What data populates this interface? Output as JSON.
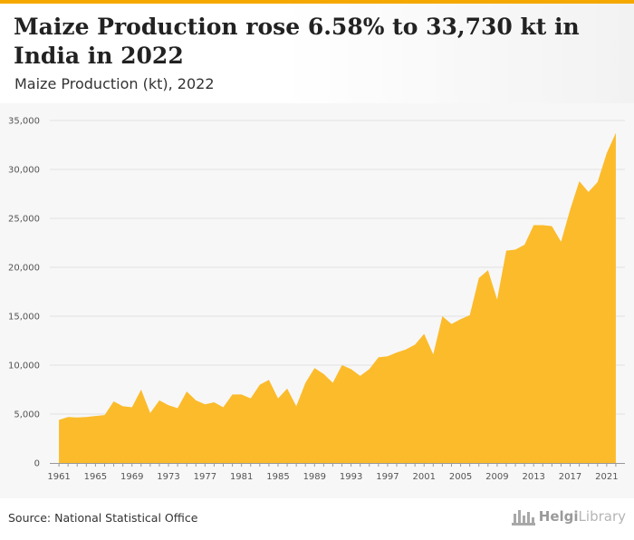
{
  "header": {
    "title": "Maize Production rose 6.58% to 33,730 kt in India in 2022",
    "subtitle": "Maize Production (kt), 2022"
  },
  "footer": {
    "source": "Source: National Statistical Office",
    "logo_bold": "Helgi",
    "logo_light": "Library"
  },
  "colors": {
    "accent_bar": "#f5a800",
    "area_fill": "#fbbb2b"
  },
  "chart_data": {
    "type": "area",
    "title": "",
    "xlabel": "",
    "ylabel": "",
    "ylim": [
      0,
      35000
    ],
    "yticks": [
      "0",
      "5,000",
      "10,000",
      "15,000",
      "20,000",
      "25,000",
      "30,000",
      "35,000"
    ],
    "xticks": [
      "1961",
      "1965",
      "1969",
      "1973",
      "1977",
      "1981",
      "1985",
      "1989",
      "1993",
      "1997",
      "2001",
      "2005",
      "2009",
      "2013",
      "2017",
      "2021"
    ],
    "grid": true,
    "legend": "none",
    "x": [
      1961,
      1962,
      1963,
      1964,
      1965,
      1966,
      1967,
      1968,
      1969,
      1970,
      1971,
      1972,
      1973,
      1974,
      1975,
      1976,
      1977,
      1978,
      1979,
      1980,
      1981,
      1982,
      1983,
      1984,
      1985,
      1986,
      1987,
      1988,
      1989,
      1990,
      1991,
      1992,
      1993,
      1994,
      1995,
      1996,
      1997,
      1998,
      1999,
      2000,
      2001,
      2002,
      2003,
      2004,
      2005,
      2006,
      2007,
      2008,
      2009,
      2010,
      2011,
      2012,
      2013,
      2014,
      2015,
      2016,
      2017,
      2018,
      2019,
      2020,
      2021,
      2022
    ],
    "series": [
      {
        "values": [
          4400,
          4700,
          4650,
          4700,
          4800,
          4900,
          6300,
          5800,
          5700,
          7500,
          5100,
          6400,
          5900,
          5600,
          7300,
          6400,
          6000,
          6200,
          5700,
          7000,
          7000,
          6600,
          8000,
          8500,
          6600,
          7600,
          5800,
          8200,
          9700,
          9100,
          8200,
          10000,
          9600,
          8900,
          9600,
          10800,
          10900,
          11300,
          11600,
          12100,
          13200,
          11100,
          15000,
          14200,
          14700,
          15100,
          18900,
          19700,
          16700,
          21700,
          21800,
          22300,
          24300,
          24300,
          24200,
          22600,
          25900,
          28800,
          27700,
          28700,
          31650,
          33730
        ]
      }
    ]
  }
}
